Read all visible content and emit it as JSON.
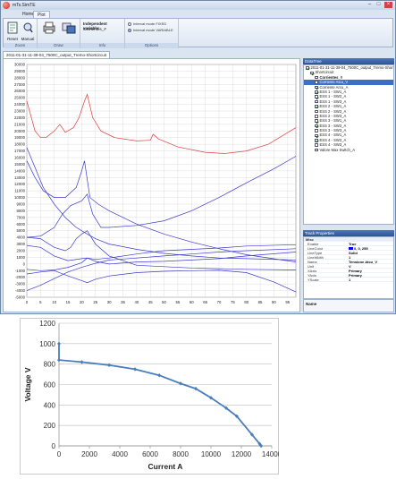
{
  "window": {
    "title": "mTs.SimTE",
    "min": "–",
    "max": "□",
    "close": "×",
    "accent": "#1f4f96"
  },
  "ribbon": {
    "tabs": [
      {
        "label": "Home"
      },
      {
        "label": "Plot"
      }
    ],
    "groups": {
      "zoom": "Zoom",
      "draw": "Draw",
      "info": "Info",
      "options": "Options"
    },
    "buttons": {
      "reset": "Reset",
      "manual": "Manual"
    },
    "info": {
      "heading": "Independent variable:",
      "value": "Corrientes_#"
    },
    "options": {
      "fixed": "Interval mode FIXED",
      "variable": "Interval mode VARIABLE"
    }
  },
  "document_tab": "2011-01-31-11-39-04_7500C_output_Tremo-Shortcircuit",
  "datatree": {
    "header": "DataTree",
    "items": [
      {
        "label": "2011-01-31-11-39-04_7500C_output_Tremo-Shortcircuit",
        "checked": true,
        "level": 0
      },
      {
        "label": "Shortcircuit",
        "checked": true,
        "level": 1
      },
      {
        "label": "Corrientes_#",
        "checked": false,
        "level": 2,
        "bold": true
      },
      {
        "label": "Corriente Atcu_V",
        "checked": false,
        "level": 2,
        "selected": true
      },
      {
        "label": "Corriente Arcu_A",
        "checked": true,
        "level": 2
      },
      {
        "label": "ESS 1 - SW1_A",
        "checked": true,
        "level": 2
      },
      {
        "label": "ESS 1 - SW2_A",
        "checked": true,
        "level": 2
      },
      {
        "label": "ESS 1 - SW3_A",
        "checked": false,
        "level": 2
      },
      {
        "label": "ESS 2 - SW1_A",
        "checked": true,
        "level": 2
      },
      {
        "label": "ESS 2 - SW2_A",
        "checked": false,
        "level": 2
      },
      {
        "label": "ESS 2 - SW3_A",
        "checked": false,
        "level": 2
      },
      {
        "label": "ESS 3 - SW1_A",
        "checked": true,
        "level": 2
      },
      {
        "label": "ESS 3 - SW2_A",
        "checked": true,
        "level": 2
      },
      {
        "label": "ESS 3 - SW3_A",
        "checked": false,
        "level": 2
      },
      {
        "label": "ESS 4 - SW1_A",
        "checked": true,
        "level": 2
      },
      {
        "label": "ESS 4 - SW2_A",
        "checked": true,
        "level": 2
      },
      {
        "label": "ESS 4 - SW3_A",
        "checked": false,
        "level": 2
      },
      {
        "label": "Valore Max Switch_A",
        "checked": false,
        "level": 2
      }
    ]
  },
  "track_properties": {
    "header": "Track Properties",
    "category": "Misc",
    "rows": [
      {
        "key": "Enable",
        "value": "True"
      },
      {
        "key": "LineColor",
        "value": "0, 0, 255",
        "swatch": "#0000ff"
      },
      {
        "key": "LineType",
        "value": "Solid"
      },
      {
        "key": "LineWidth",
        "value": "1"
      },
      {
        "key": "Name",
        "value": "Tensione Atcu_V"
      },
      {
        "key": "Unit",
        "value": "V"
      },
      {
        "key": "XAxis",
        "value": "Primary"
      },
      {
        "key": "YAxis",
        "value": "Primary"
      },
      {
        "key": "YScale",
        "value": "1"
      }
    ],
    "description_title": "Name"
  },
  "main_plot": {
    "y_ticks": [
      30000,
      29000,
      28000,
      27000,
      26000,
      25000,
      24000,
      23000,
      22000,
      21000,
      20000,
      19000,
      18000,
      17000,
      16000,
      15000,
      14000,
      13000,
      12000,
      11000,
      10000,
      9000,
      8000,
      7000,
      6000,
      5000,
      4000,
      3000,
      2000,
      1000,
      0,
      -1000,
      -2000,
      -3000,
      -4000,
      -5000
    ],
    "x_ticks": [
      0,
      5,
      10,
      15,
      20,
      25,
      30,
      35,
      40,
      45,
      50,
      55,
      60,
      65,
      70,
      75,
      80,
      85,
      90,
      95
    ],
    "ylim": [
      -5000,
      30000
    ],
    "xlim": [
      0,
      98
    ],
    "grid": true,
    "series": [
      {
        "color": "#e03c3c",
        "points": [
          [
            0,
            24500
          ],
          [
            3,
            20000
          ],
          [
            5,
            19000
          ],
          [
            7,
            19000
          ],
          [
            10,
            20000
          ],
          [
            12,
            21000
          ],
          [
            14,
            19800
          ],
          [
            17,
            20500
          ],
          [
            19,
            22000
          ],
          [
            21,
            24500
          ],
          [
            22,
            25500
          ],
          [
            24,
            22000
          ],
          [
            27,
            20000
          ],
          [
            32,
            19000
          ],
          [
            40,
            18500
          ],
          [
            45,
            18600
          ],
          [
            46,
            19500
          ],
          [
            48,
            18800
          ],
          [
            55,
            17600
          ],
          [
            65,
            16800
          ],
          [
            72,
            16600
          ],
          [
            80,
            17000
          ],
          [
            88,
            18000
          ],
          [
            98,
            20500
          ]
        ]
      },
      {
        "color": "#3a3ad0",
        "points": [
          [
            0,
            17500
          ],
          [
            3,
            14500
          ],
          [
            6,
            11500
          ],
          [
            10,
            9000
          ],
          [
            14,
            7000
          ],
          [
            18,
            5500
          ],
          [
            22,
            4500
          ],
          [
            25,
            3800
          ],
          [
            30,
            3000
          ],
          [
            40,
            2200
          ],
          [
            50,
            1600
          ],
          [
            60,
            1200
          ],
          [
            70,
            900
          ],
          [
            80,
            800
          ],
          [
            98,
            600
          ]
        ]
      },
      {
        "color": "#3a3ad0",
        "points": [
          [
            0,
            15500
          ],
          [
            3,
            13000
          ],
          [
            6,
            11000
          ],
          [
            10,
            10000
          ],
          [
            14,
            10000
          ],
          [
            18,
            11500
          ],
          [
            20,
            14000
          ],
          [
            21,
            15500
          ],
          [
            23,
            10000
          ],
          [
            26,
            9000
          ],
          [
            30,
            8000
          ],
          [
            40,
            6000
          ],
          [
            50,
            4500
          ],
          [
            60,
            3300
          ],
          [
            70,
            2300
          ],
          [
            80,
            1400
          ],
          [
            98,
            300
          ]
        ]
      },
      {
        "color": "#3a3ad0",
        "points": [
          [
            0,
            4000
          ],
          [
            5,
            4200
          ],
          [
            10,
            5500
          ],
          [
            13,
            7500
          ],
          [
            16,
            8800
          ],
          [
            20,
            9500
          ],
          [
            22,
            10500
          ],
          [
            24,
            7500
          ],
          [
            27,
            5500
          ],
          [
            30,
            5500
          ],
          [
            40,
            5800
          ],
          [
            50,
            6500
          ],
          [
            60,
            8000
          ],
          [
            70,
            10000
          ],
          [
            80,
            12200
          ],
          [
            90,
            14300
          ],
          [
            98,
            16200
          ]
        ]
      },
      {
        "color": "#3a3ad0",
        "points": [
          [
            0,
            4000
          ],
          [
            5,
            3800
          ],
          [
            10,
            2500
          ],
          [
            14,
            2000
          ],
          [
            16,
            2500
          ],
          [
            18,
            3800
          ],
          [
            20,
            4500
          ],
          [
            22,
            5000
          ],
          [
            25,
            3000
          ],
          [
            30,
            1200
          ],
          [
            40,
            -200
          ],
          [
            50,
            -400
          ],
          [
            60,
            -600
          ],
          [
            70,
            -700
          ],
          [
            80,
            -800
          ],
          [
            98,
            -900
          ]
        ]
      },
      {
        "color": "#3a3ad0",
        "points": [
          [
            0,
            2800
          ],
          [
            5,
            2500
          ],
          [
            10,
            1200
          ],
          [
            15,
            500
          ],
          [
            20,
            800
          ],
          [
            22,
            900
          ],
          [
            25,
            700
          ],
          [
            30,
            900
          ],
          [
            40,
            1500
          ],
          [
            50,
            2000
          ],
          [
            60,
            2200
          ],
          [
            70,
            2400
          ],
          [
            80,
            2700
          ],
          [
            98,
            2900
          ]
        ]
      },
      {
        "color": "#3a3ad0",
        "points": [
          [
            0,
            -800
          ],
          [
            5,
            -1000
          ],
          [
            10,
            -900
          ],
          [
            15,
            -500
          ],
          [
            20,
            200
          ],
          [
            22,
            900
          ],
          [
            25,
            400
          ],
          [
            30,
            0
          ],
          [
            40,
            300
          ],
          [
            50,
            400
          ],
          [
            60,
            600
          ],
          [
            70,
            800
          ],
          [
            80,
            1200
          ],
          [
            98,
            1800
          ]
        ]
      },
      {
        "color": "#3a3ad0",
        "points": [
          [
            0,
            -1500
          ],
          [
            5,
            -1200
          ],
          [
            10,
            -1000
          ],
          [
            15,
            -1800
          ],
          [
            20,
            -2500
          ],
          [
            22,
            -2800
          ],
          [
            25,
            -2300
          ],
          [
            30,
            -1800
          ],
          [
            40,
            -1300
          ],
          [
            50,
            -1100
          ],
          [
            60,
            -1000
          ],
          [
            70,
            -950
          ],
          [
            80,
            -1300
          ],
          [
            90,
            -2700
          ],
          [
            98,
            -4200
          ]
        ]
      },
      {
        "color": "#3a3ad0",
        "points": [
          [
            0,
            -4000
          ],
          [
            5,
            -3200
          ],
          [
            10,
            -2200
          ],
          [
            15,
            -1200
          ],
          [
            20,
            -500
          ],
          [
            25,
            100
          ],
          [
            30,
            600
          ],
          [
            40,
            900
          ],
          [
            50,
            1200
          ],
          [
            60,
            1500
          ],
          [
            70,
            1800
          ],
          [
            80,
            2000
          ],
          [
            98,
            2300
          ]
        ]
      }
    ]
  },
  "chart_data": {
    "type": "line",
    "title": "",
    "xlabel": "Current A",
    "ylabel": "Voltage V",
    "xlim": [
      0,
      14000
    ],
    "ylim": [
      0,
      1200
    ],
    "x_ticks": [
      0,
      2000,
      4000,
      6000,
      8000,
      10000,
      12000,
      14000
    ],
    "y_ticks": [
      0,
      200,
      400,
      600,
      800,
      1000,
      1200
    ],
    "grid": true,
    "series": [
      {
        "color": "#4a7ebb",
        "x": [
          0,
          0,
          1500,
          3300,
          5000,
          6600,
          8000,
          9000,
          10000,
          11000,
          11700,
          12700,
          13200,
          13300
        ],
        "y": [
          1000,
          840,
          820,
          790,
          750,
          690,
          610,
          560,
          470,
          370,
          290,
          110,
          20,
          0
        ]
      }
    ]
  }
}
